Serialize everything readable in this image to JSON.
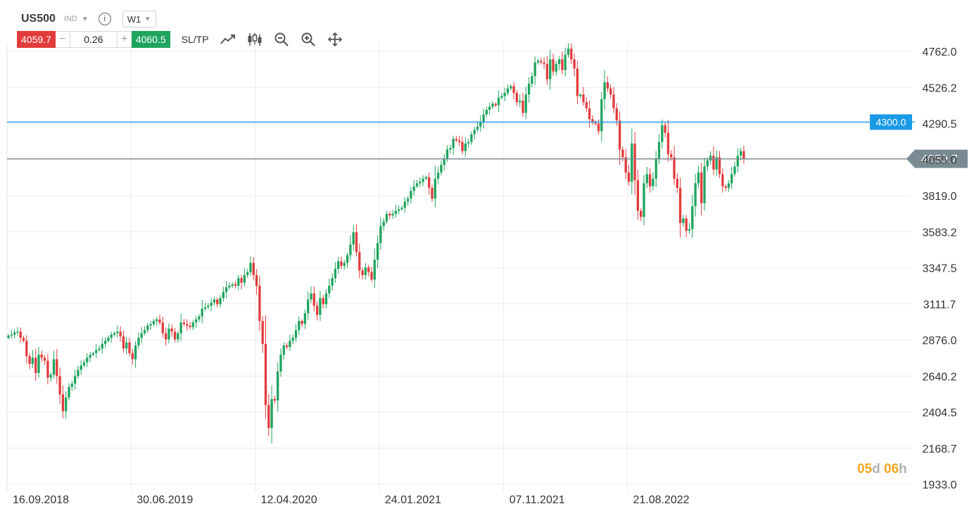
{
  "header": {
    "symbol": "US500",
    "symbol_type": "IND",
    "timeframe": "W1"
  },
  "trade": {
    "sell_price": "4059.7",
    "buy_price": "4060.5",
    "quantity": "0.26",
    "minus_label": "−",
    "plus_label": "+",
    "sltp_label": "SL/TP"
  },
  "countdown": {
    "days": "05",
    "days_unit": "d",
    "hours": "06",
    "hours_unit": "h"
  },
  "colors": {
    "up": "#1fa45e",
    "down": "#e23b3b",
    "level_line": "#1a9ae6",
    "price_line": "#7a8a93"
  },
  "chart_data": {
    "type": "candlestick",
    "ylim": [
      1933.0,
      4880.0
    ],
    "y_ticks": [
      "4762.0",
      "4526.2",
      "4290.5",
      "4055.0",
      "3819.0",
      "3583.2",
      "3347.5",
      "3111.7",
      "2876.0",
      "2640.2",
      "2404.5",
      "2168.7",
      "1933.0"
    ],
    "x_ticks": [
      {
        "label": "16.09.2018",
        "week": 0
      },
      {
        "label": "30.06.2019",
        "week": 41
      },
      {
        "label": "12.04.2020",
        "week": 82
      },
      {
        "label": "24.01.2021",
        "week": 123
      },
      {
        "label": "07.11.2021",
        "week": 164
      },
      {
        "label": "21.08.2022",
        "week": 205
      }
    ],
    "level_line": {
      "value": 4300.0,
      "label": "4300.0"
    },
    "current_price": {
      "value": 4059.7,
      "label": "4059.7"
    },
    "grid": true,
    "closes": [
      2905,
      2910,
      2925,
      2930,
      2890,
      2870,
      2770,
      2720,
      2760,
      2660,
      2780,
      2760,
      2740,
      2630,
      2650,
      2750,
      2640,
      2520,
      2410,
      2500,
      2570,
      2590,
      2640,
      2680,
      2710,
      2730,
      2760,
      2780,
      2790,
      2810,
      2820,
      2850,
      2870,
      2890,
      2910,
      2920,
      2930,
      2900,
      2820,
      2860,
      2790,
      2750,
      2840,
      2890,
      2920,
      2940,
      2970,
      2980,
      3000,
      3010,
      2990,
      2920,
      2880,
      2950,
      2930,
      2880,
      2920,
      2990,
      2980,
      2970,
      2960,
      2990,
      3010,
      3030,
      3080,
      3090,
      3100,
      3120,
      3140,
      3110,
      3150,
      3190,
      3220,
      3230,
      3240,
      3230,
      3280,
      3250,
      3300,
      3320,
      3380,
      3300,
      3230,
      3000,
      2850,
      2450,
      2300,
      2490,
      2480,
      2670,
      2780,
      2840,
      2830,
      2870,
      2890,
      2940,
      3000,
      2980,
      3050,
      3140,
      3180,
      3100,
      3040,
      3150,
      3110,
      3180,
      3230,
      3280,
      3340,
      3390,
      3360,
      3380,
      3430,
      3500,
      3580,
      3450,
      3330,
      3300,
      3350,
      3320,
      3270,
      3400,
      3510,
      3620,
      3650,
      3700,
      3690,
      3700,
      3720,
      3730,
      3740,
      3780,
      3800,
      3850,
      3880,
      3900,
      3910,
      3930,
      3940,
      3870,
      3800,
      3930,
      3970,
      4020,
      4060,
      4120,
      4130,
      4190,
      4180,
      4170,
      4110,
      4160,
      4170,
      4220,
      4250,
      4270,
      4300,
      4350,
      4380,
      4400,
      4420,
      4410,
      4460,
      4470,
      4490,
      4520,
      4535,
      4490,
      4430,
      4440,
      4360,
      4480,
      4550,
      4600,
      4690,
      4700,
      4690,
      4680,
      4580,
      4710,
      4630,
      4680,
      4710,
      4640,
      4740,
      4780,
      4710,
      4650,
      4470,
      4480,
      4430,
      4390,
      4320,
      4300,
      4290,
      4240,
      4450,
      4560,
      4520,
      4480,
      4390,
      4310,
      4120,
      4070,
      3970,
      3910,
      4160,
      3920,
      3720,
      3680,
      3900,
      3960,
      3880,
      3930,
      4060,
      4170,
      4280,
      4230,
      4090,
      4070,
      3930,
      3870,
      3640,
      3670,
      3590,
      3600,
      3750,
      3900,
      3970,
      3770,
      4010,
      4050,
      4080,
      3990,
      4070,
      3960,
      3880,
      3870,
      3900,
      3960,
      4010,
      4080,
      4110,
      4059.7
    ],
    "candle_width": 3.3
  }
}
